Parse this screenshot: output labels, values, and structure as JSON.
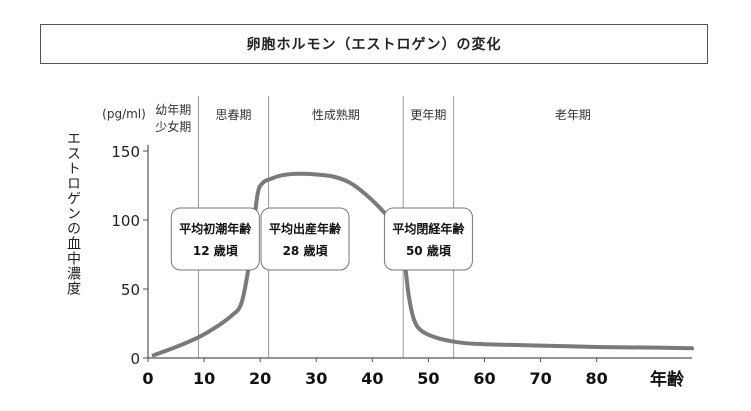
{
  "chart_data": {
    "type": "line",
    "title": "卵胞ホルモン（エストロゲン）の変化",
    "ylabel": "エストロゲンの血中濃度",
    "yunit": "(pg/ml)",
    "xlabel": "年齢",
    "xlim": [
      0,
      97
    ],
    "ylim": [
      0,
      150
    ],
    "xticks": [
      0,
      10,
      20,
      30,
      40,
      50,
      60,
      70,
      80
    ],
    "yticks": [
      0,
      50,
      100,
      150
    ],
    "grid": false,
    "legend": "none",
    "phases": [
      {
        "name": "幼年期\n少女期",
        "start": 0,
        "end": 9
      },
      {
        "name": "思春期",
        "start": 9,
        "end": 21.5
      },
      {
        "name": "性成熟期",
        "start": 21.5,
        "end": 45.5
      },
      {
        "name": "更年期",
        "start": 45.5,
        "end": 54.5
      },
      {
        "name": "老年期",
        "start": 54.5,
        "end": 97
      }
    ],
    "annotations": [
      {
        "line1": "平均初潮年齢",
        "line2": "12 歳頃",
        "age": 12
      },
      {
        "line1": "平均出産年齢",
        "line2": "28 歳頃",
        "age": 28
      },
      {
        "line1": "平均閉経年齢",
        "line2": "50 歳頃",
        "age": 50
      }
    ],
    "series": [
      {
        "color": "#7a7a7a",
        "x": [
          1,
          5,
          9,
          12,
          15,
          16.5,
          17.5,
          18.5,
          19.5,
          20.5,
          22,
          24,
          27,
          30,
          33,
          36,
          39,
          42,
          44,
          45,
          45.7,
          46.5,
          47.5,
          49,
          52,
          56,
          60,
          70,
          80,
          90,
          97
        ],
        "y": [
          2,
          8,
          15,
          22,
          31,
          38,
          55,
          82,
          118,
          127,
          130,
          132.5,
          133.5,
          133,
          131.5,
          127,
          118,
          106,
          96,
          88,
          72,
          45,
          27,
          19,
          14,
          11,
          10,
          9,
          8,
          7.5,
          7
        ]
      }
    ]
  }
}
